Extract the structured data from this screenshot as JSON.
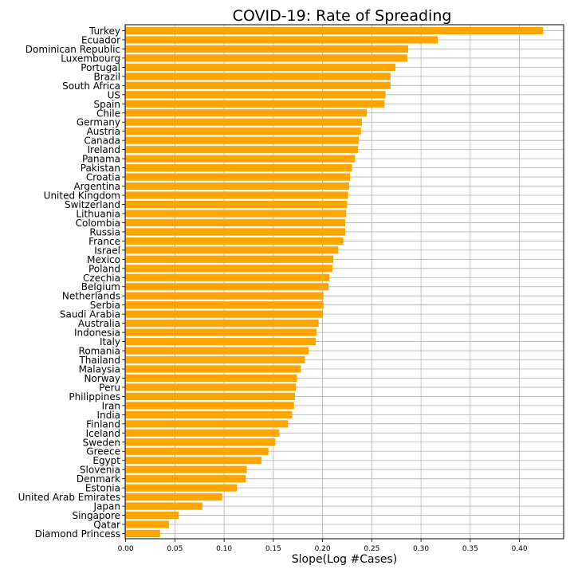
{
  "chart_data": {
    "type": "bar",
    "orientation": "horizontal",
    "title": "COVID-19: Rate of Spreading",
    "xlabel": "Slope(Log #Cases)",
    "ylabel": "",
    "xlim": [
      0,
      0.45
    ],
    "xticks": [
      "0.00",
      "0.05",
      "0.10",
      "0.15",
      "0.20",
      "0.25",
      "0.30",
      "0.35",
      "0.40"
    ],
    "grid": true,
    "bar_color": "#ffa500",
    "categories": [
      "Turkey",
      "Ecuador",
      "Dominican Republic",
      "Luxembourg",
      "Portugal",
      "Brazil",
      "South Africa",
      "US",
      "Spain",
      "Chile",
      "Germany",
      "Austria",
      "Canada",
      "Ireland",
      "Panama",
      "Pakistan",
      "Croatia",
      "Argentina",
      "United Kingdom",
      "Switzerland",
      "Lithuania",
      "Colombia",
      "Russia",
      "France",
      "Israel",
      "Mexico",
      "Poland",
      "Czechia",
      "Belgium",
      "Netherlands",
      "Serbia",
      "Saudi Arabia",
      "Australia",
      "Indonesia",
      "Italy",
      "Romania",
      "Thailand",
      "Malaysia",
      "Norway",
      "Peru",
      "Philippines",
      "Iran",
      "India",
      "Finland",
      "Iceland",
      "Sweden",
      "Greece",
      "Egypt",
      "Slovenia",
      "Denmark",
      "Estonia",
      "United Arab Emirates",
      "Japan",
      "Singapore",
      "Qatar",
      "Diamond Princess"
    ],
    "values": [
      0.424,
      0.317,
      0.287,
      0.286,
      0.274,
      0.269,
      0.269,
      0.264,
      0.263,
      0.245,
      0.24,
      0.239,
      0.237,
      0.236,
      0.233,
      0.23,
      0.228,
      0.227,
      0.226,
      0.225,
      0.224,
      0.223,
      0.223,
      0.221,
      0.216,
      0.211,
      0.21,
      0.207,
      0.206,
      0.201,
      0.201,
      0.2,
      0.196,
      0.194,
      0.193,
      0.186,
      0.182,
      0.178,
      0.174,
      0.173,
      0.172,
      0.171,
      0.169,
      0.165,
      0.156,
      0.152,
      0.145,
      0.138,
      0.123,
      0.122,
      0.113,
      0.098,
      0.078,
      0.054,
      0.044,
      0.035
    ]
  }
}
